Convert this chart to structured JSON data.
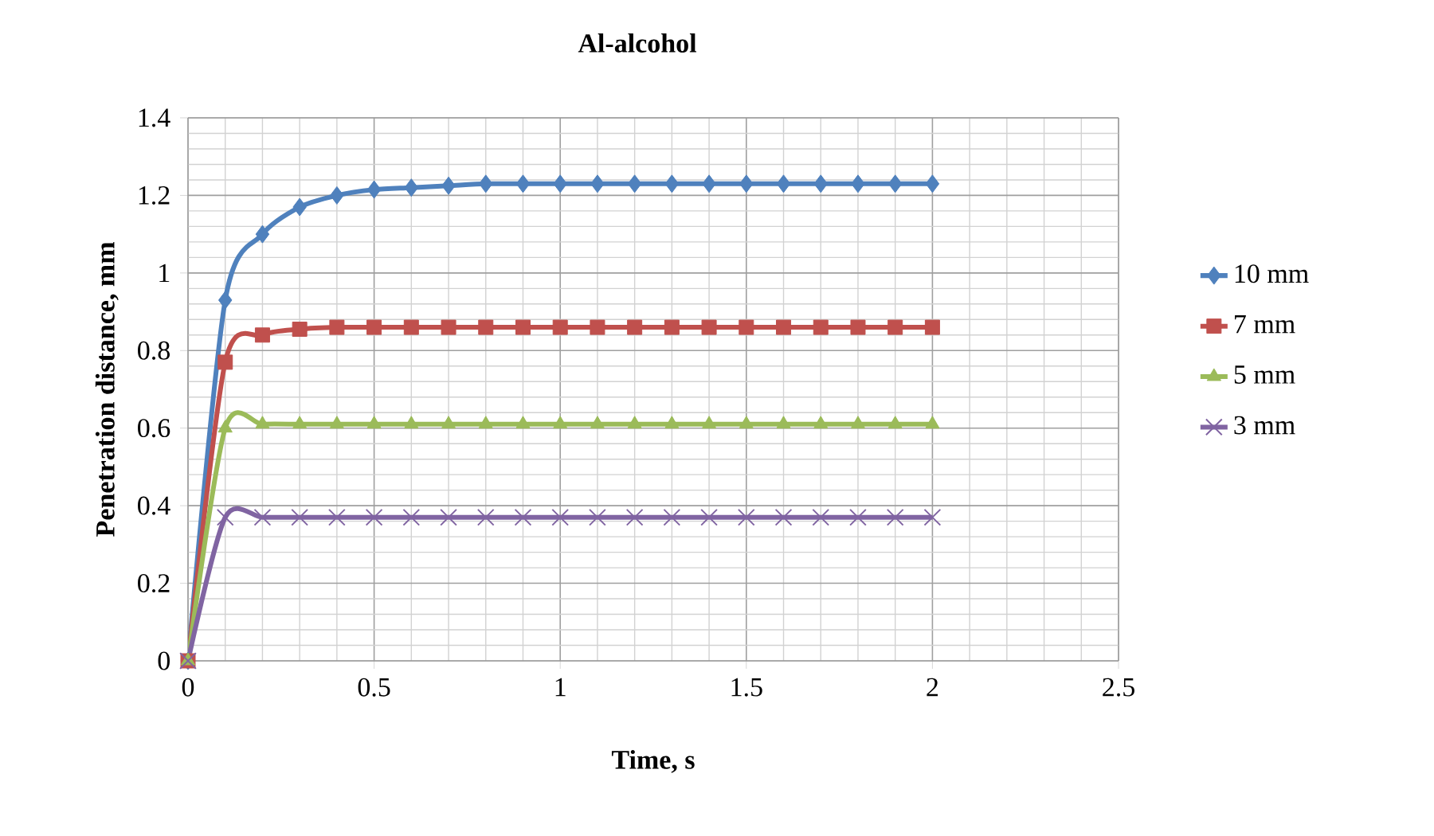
{
  "chart_data": {
    "type": "line",
    "title": "Al-alcohol",
    "xlabel": "Time, s",
    "ylabel": "Penetration distance, mm",
    "x": [
      0,
      0.1,
      0.2,
      0.3,
      0.4,
      0.5,
      0.6,
      0.7,
      0.8,
      0.9,
      1.0,
      1.1,
      1.2,
      1.3,
      1.4,
      1.5,
      1.6,
      1.7,
      1.8,
      1.9,
      2.0
    ],
    "series": [
      {
        "name": "10 mm",
        "color": "#4f81bd",
        "marker": "diamond",
        "values": [
          0,
          0.93,
          1.1,
          1.17,
          1.2,
          1.215,
          1.22,
          1.225,
          1.23,
          1.23,
          1.23,
          1.23,
          1.23,
          1.23,
          1.23,
          1.23,
          1.23,
          1.23,
          1.23,
          1.23,
          1.23
        ]
      },
      {
        "name": "7 mm",
        "color": "#c0504d",
        "marker": "square",
        "values": [
          0,
          0.77,
          0.84,
          0.855,
          0.86,
          0.86,
          0.86,
          0.86,
          0.86,
          0.86,
          0.86,
          0.86,
          0.86,
          0.86,
          0.86,
          0.86,
          0.86,
          0.86,
          0.86,
          0.86,
          0.86
        ]
      },
      {
        "name": "5 mm",
        "color": "#9bbb59",
        "marker": "triangle",
        "values": [
          0,
          0.6,
          0.61,
          0.61,
          0.61,
          0.61,
          0.61,
          0.61,
          0.61,
          0.61,
          0.61,
          0.61,
          0.61,
          0.61,
          0.61,
          0.61,
          0.61,
          0.61,
          0.61,
          0.61,
          0.61
        ]
      },
      {
        "name": "3 mm",
        "color": "#8064a2",
        "marker": "cross",
        "values": [
          0,
          0.37,
          0.37,
          0.37,
          0.37,
          0.37,
          0.37,
          0.37,
          0.37,
          0.37,
          0.37,
          0.37,
          0.37,
          0.37,
          0.37,
          0.37,
          0.37,
          0.37,
          0.37,
          0.37,
          0.37
        ]
      }
    ],
    "xlim": [
      0,
      2.5
    ],
    "xticks": [
      0,
      0.5,
      1,
      1.5,
      2,
      2.5
    ],
    "ylim": [
      0,
      1.4
    ],
    "yticks": [
      0,
      0.2,
      0.4,
      0.6,
      0.8,
      1,
      1.2,
      1.4
    ],
    "grid": true,
    "legend": "right"
  }
}
